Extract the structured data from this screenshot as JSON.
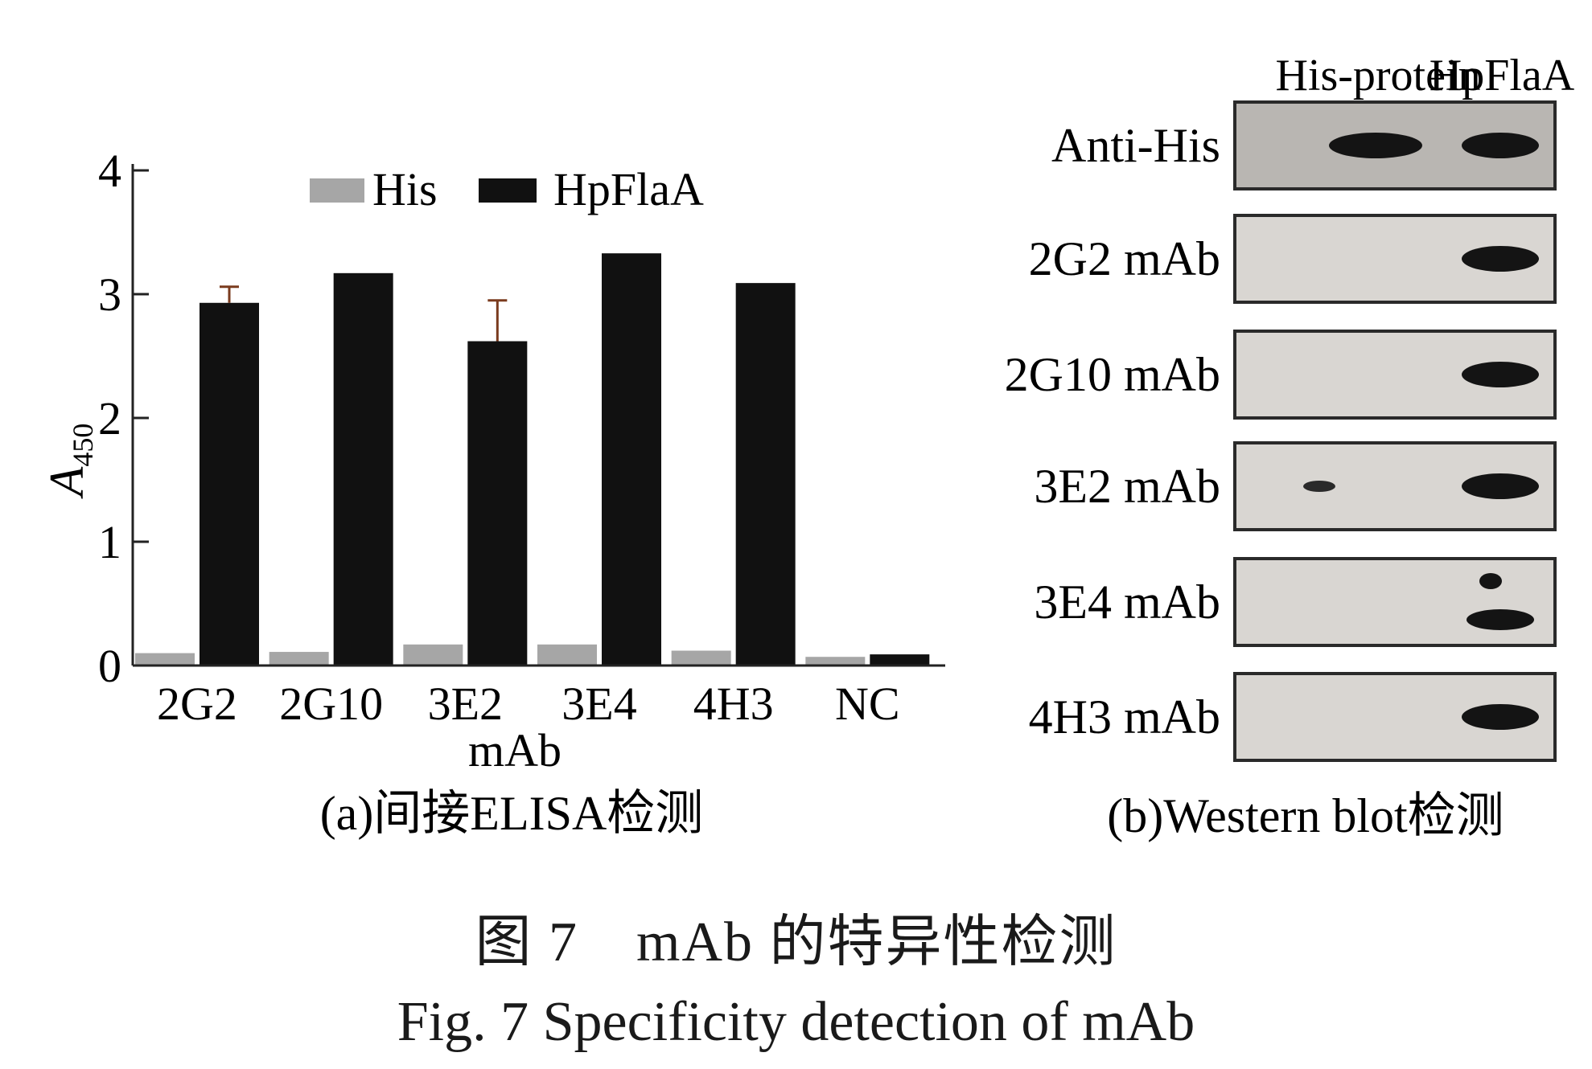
{
  "chart_data": {
    "type": "bar",
    "categories": [
      "2G2",
      "2G10",
      "3E2",
      "3E4",
      "4H3",
      "NC"
    ],
    "series": [
      {
        "name": "His",
        "values": [
          0.1,
          0.11,
          0.17,
          0.17,
          0.12,
          0.07
        ],
        "color": "#a6a6a6"
      },
      {
        "name": "HpFlaA",
        "values": [
          2.93,
          3.17,
          2.62,
          3.33,
          3.09,
          0.09
        ],
        "color": "#111111"
      }
    ],
    "error_bars": {
      "HpFlaA": [
        0.13,
        0.0,
        0.33,
        0.0,
        0.0,
        0.0
      ]
    },
    "xlabel": "mAb",
    "ylabel": "A",
    "ylabel_sub": "450",
    "ylim": [
      0,
      4
    ],
    "yticks": [
      "0",
      "1",
      "2",
      "3",
      "4"
    ],
    "legend": "top",
    "grid": false,
    "panel_caption": "(a)间接ELISA检测"
  },
  "western_blot": {
    "lanes": [
      "His-protein",
      "HpFlaA"
    ],
    "rows": [
      {
        "label": "Anti-His",
        "bands": [
          "strong",
          "strong"
        ]
      },
      {
        "label": "2G2 mAb",
        "bands": [
          "none",
          "strong"
        ]
      },
      {
        "label": "2G10 mAb",
        "bands": [
          "none",
          "strong"
        ]
      },
      {
        "label": "3E2 mAb",
        "bands": [
          "weak",
          "strong"
        ]
      },
      {
        "label": "3E4 mAb",
        "bands": [
          "none",
          "double"
        ]
      },
      {
        "label": "4H3 mAb",
        "bands": [
          "none",
          "strong"
        ]
      }
    ],
    "panel_caption": "(b)Western blot检测"
  },
  "figure_caption": {
    "cn": "图 7　mAb 的特异性检测",
    "en": "Fig. 7   Specificity detection of mAb"
  }
}
